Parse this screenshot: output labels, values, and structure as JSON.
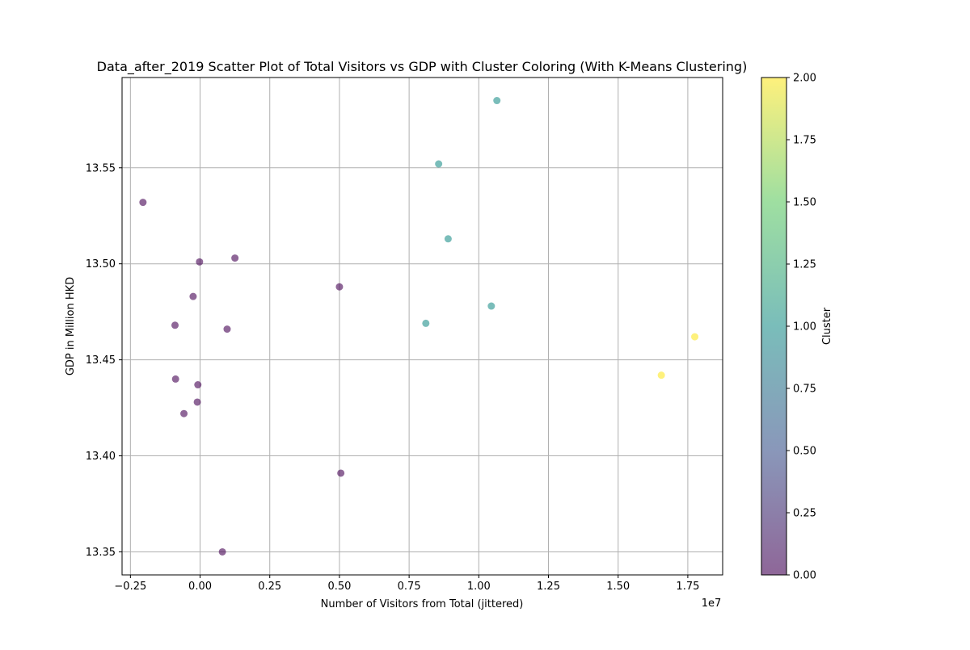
{
  "chart_data": {
    "type": "scatter",
    "title": "Data_after_2019 Scatter Plot of Total Visitors vs GDP with Cluster Coloring (With K-Means Clustering)",
    "xlabel": "Number of Visitors from Total (jittered)",
    "ylabel": "GDP in Million HKD",
    "x_offset_label": "1e7",
    "xlim": [
      -0.28,
      1.875
    ],
    "ylim": [
      13.338,
      13.597
    ],
    "x_ticks": [
      -0.25,
      0.0,
      0.25,
      0.5,
      0.75,
      1.0,
      1.25,
      1.5,
      1.75
    ],
    "x_tick_labels": [
      "−0.25",
      "0.00",
      "0.25",
      "0.50",
      "0.75",
      "1.00",
      "1.25",
      "1.50",
      "1.75"
    ],
    "y_ticks": [
      13.35,
      13.4,
      13.45,
      13.5,
      13.55
    ],
    "y_tick_labels": [
      "13.35",
      "13.40",
      "13.45",
      "13.50",
      "13.55"
    ],
    "grid": true,
    "marker_alpha": 0.6,
    "colorbar": {
      "label": "Cluster",
      "min": 0.0,
      "max": 2.0,
      "ticks": [
        0.0,
        0.25,
        0.5,
        0.75,
        1.0,
        1.25,
        1.5,
        1.75,
        2.0
      ],
      "tick_labels": [
        "0.00",
        "0.25",
        "0.50",
        "0.75",
        "1.00",
        "1.25",
        "1.50",
        "1.75",
        "2.00"
      ],
      "colormap": "viridis",
      "gradient_colors": [
        "#440154",
        "#3b528b",
        "#21918c",
        "#5ec962",
        "#fde725"
      ]
    },
    "cluster_colors": {
      "0": "#440154",
      "1": "#21918c",
      "2": "#fde725"
    },
    "points": [
      {
        "x": -0.205,
        "y": 13.532,
        "cluster": 0
      },
      {
        "x": -0.002,
        "y": 13.501,
        "cluster": 0
      },
      {
        "x": 0.125,
        "y": 13.503,
        "cluster": 0
      },
      {
        "x": -0.025,
        "y": 13.483,
        "cluster": 0
      },
      {
        "x": 0.5,
        "y": 13.488,
        "cluster": 0
      },
      {
        "x": -0.09,
        "y": 13.468,
        "cluster": 0
      },
      {
        "x": 0.097,
        "y": 13.466,
        "cluster": 0
      },
      {
        "x": -0.088,
        "y": 13.44,
        "cluster": 0
      },
      {
        "x": -0.008,
        "y": 13.437,
        "cluster": 0
      },
      {
        "x": -0.01,
        "y": 13.428,
        "cluster": 0
      },
      {
        "x": -0.058,
        "y": 13.422,
        "cluster": 0
      },
      {
        "x": 0.505,
        "y": 13.391,
        "cluster": 0
      },
      {
        "x": 0.08,
        "y": 13.35,
        "cluster": 0
      },
      {
        "x": 1.065,
        "y": 13.585,
        "cluster": 1
      },
      {
        "x": 0.856,
        "y": 13.552,
        "cluster": 1
      },
      {
        "x": 0.89,
        "y": 13.513,
        "cluster": 1
      },
      {
        "x": 1.045,
        "y": 13.478,
        "cluster": 1
      },
      {
        "x": 0.81,
        "y": 13.469,
        "cluster": 1
      },
      {
        "x": 1.775,
        "y": 13.462,
        "cluster": 2
      },
      {
        "x": 1.655,
        "y": 13.442,
        "cluster": 2
      }
    ]
  }
}
